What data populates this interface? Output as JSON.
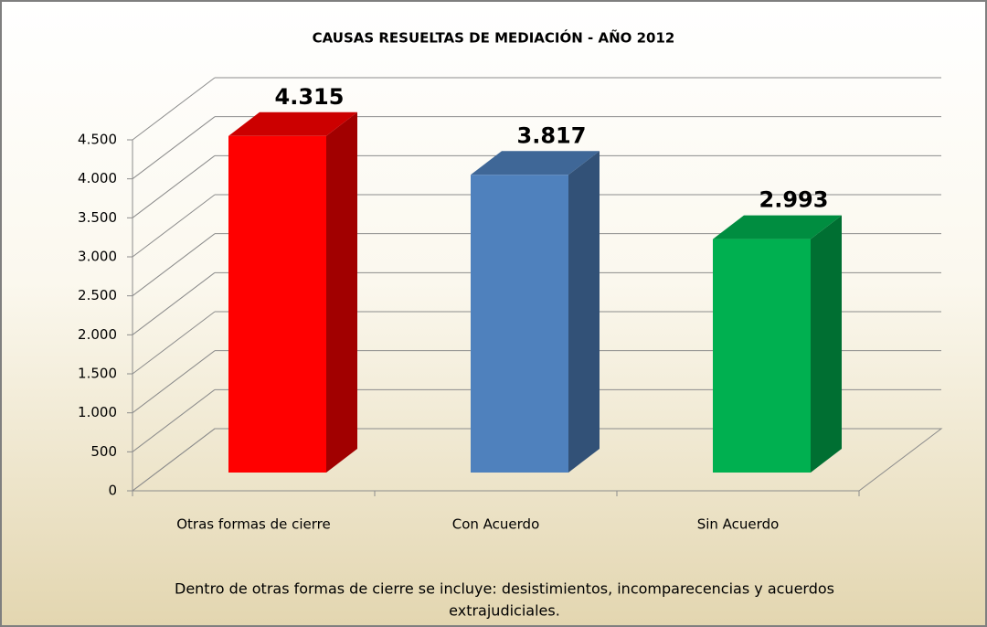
{
  "chart_data": {
    "type": "bar3d",
    "title": "CAUSAS RESUELTAS DE MEDIACIÓN - AÑO 2012",
    "categories": [
      "Otras formas de cierre",
      "Con Acuerdo",
      "Sin Acuerdo"
    ],
    "values": [
      4315,
      3817,
      2993
    ],
    "value_labels": [
      "4.315",
      "3.817",
      "2.993"
    ],
    "colors": [
      "#ff0000",
      "#4f81bd",
      "#00b050"
    ],
    "ylim": [
      0,
      4500
    ],
    "yticks": [
      0,
      500,
      {
        "value": 1000,
        "label": "1.000"
      },
      {
        "value": 1500,
        "label": "1.500"
      },
      {
        "value": 2000,
        "label": "2.000"
      },
      {
        "value": 2500,
        "label": "2.500"
      },
      {
        "value": 3000,
        "label": "3.000"
      },
      {
        "value": 3500,
        "label": "3.500"
      },
      {
        "value": 4000,
        "label": "4.000"
      },
      {
        "value": 4500,
        "label": "4.500"
      }
    ],
    "grid": true,
    "footnote": [
      "Dentro de otras formas de cierre se incluye: desistimientos, incomparecencias y acuerdos",
      "extrajudiciales."
    ]
  }
}
